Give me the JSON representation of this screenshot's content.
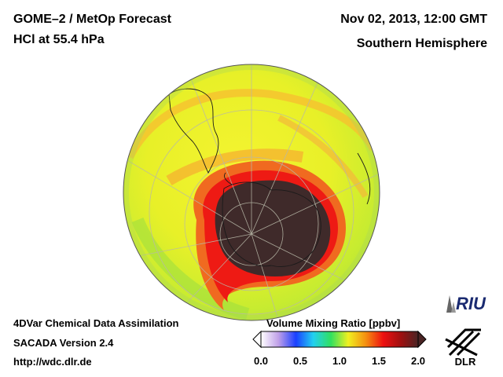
{
  "header": {
    "title_line1": "GOME–2 / MetOp Forecast",
    "title_line2": "HCl at 55.4 hPa",
    "date": "Nov 02, 2013, 12:00 GMT",
    "region": "Southern Hemisphere"
  },
  "footer": {
    "method": "4DVar Chemical Data Assimilation",
    "version": "SACADA Version 2.4",
    "url": "http://wdc.dlr.de"
  },
  "colorbar": {
    "title": "Volume Mixing Ratio [ppbv]",
    "min": 0.0,
    "max": 2.0,
    "ticks": [
      "0.0",
      "0.5",
      "1.0",
      "1.5",
      "2.0"
    ],
    "colors": [
      "#ffffff",
      "#c0a0e8",
      "#1a40ff",
      "#22d0f0",
      "#30e060",
      "#f0f020",
      "#f59010",
      "#ee1010",
      "#a01010",
      "#4a2424"
    ]
  },
  "map": {
    "projection": "orthographic, south polar",
    "vortex_color": "#3f2a2a",
    "background_field_color": "#e8f020"
  },
  "logos": {
    "riu": "RIU",
    "dlr": "DLR"
  }
}
